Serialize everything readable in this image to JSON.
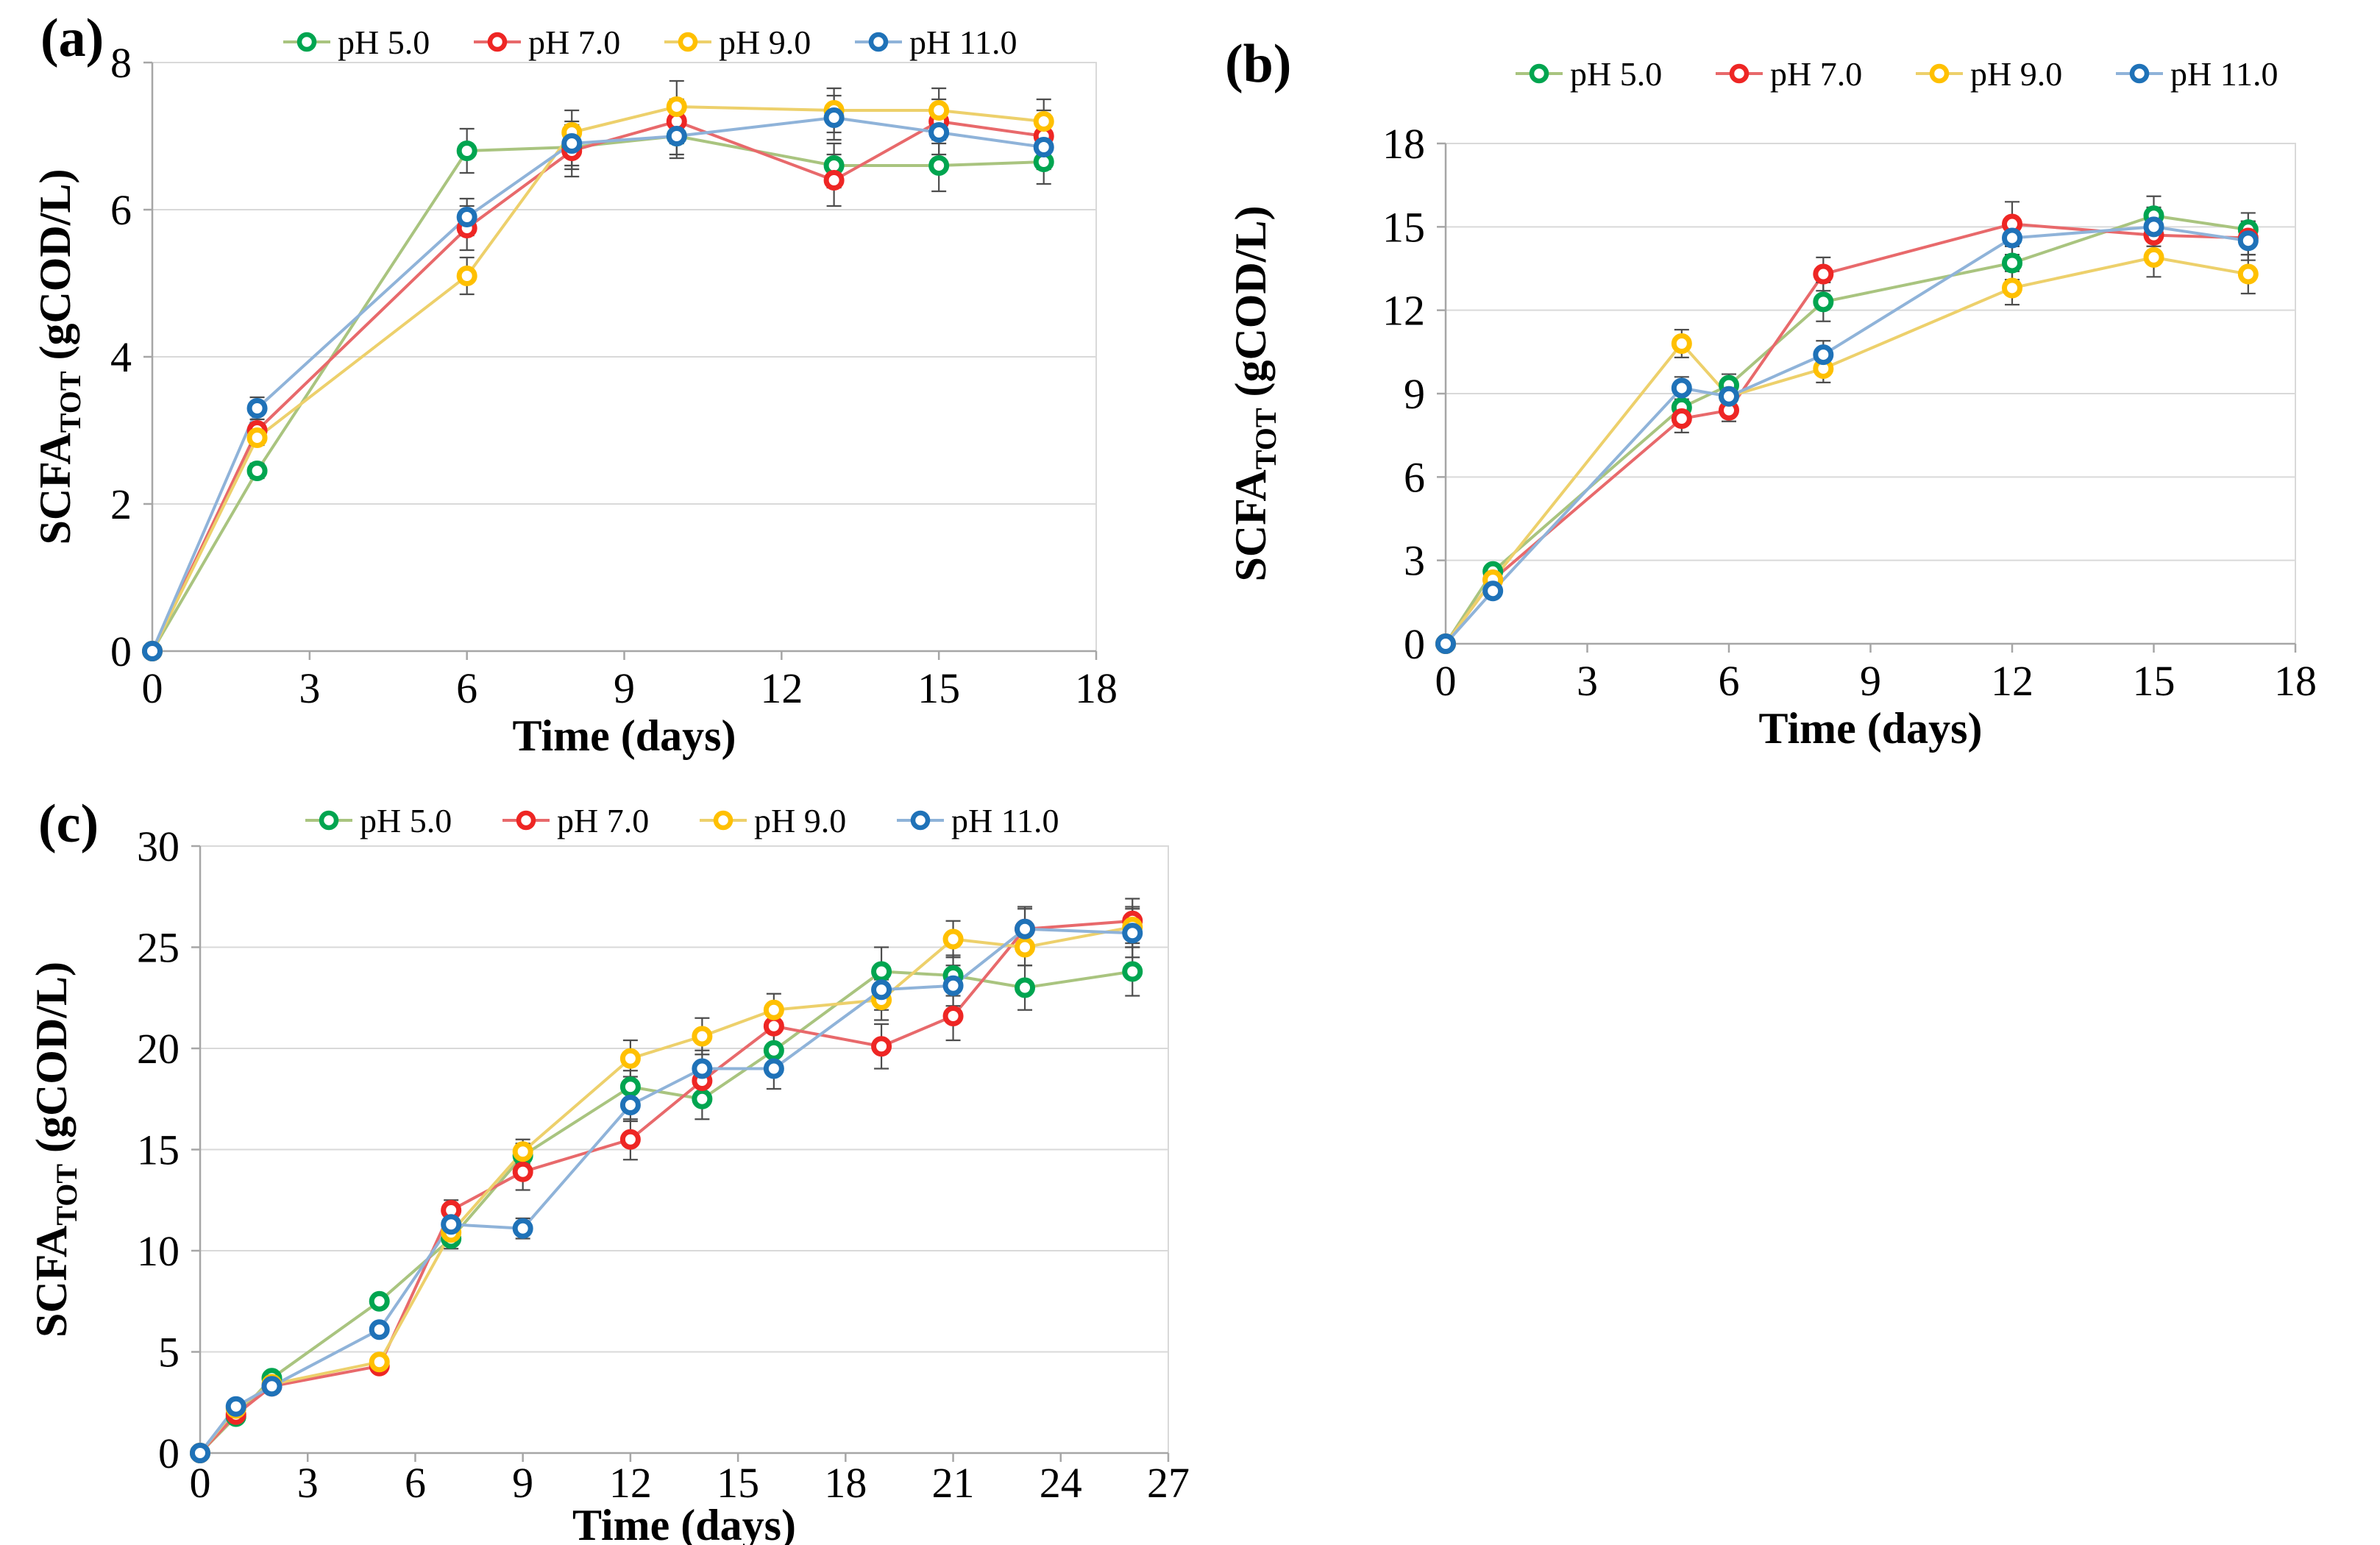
{
  "style": {
    "background_color": "#FFFFFF",
    "gridline_color": "#D9D9D9",
    "plot_border_color": "#D9D9D9",
    "axis_line_color": "#A6A6A6",
    "error_bar_color": "#4D4D4D",
    "text_color": "#000000"
  },
  "chart_data": [
    {
      "id": "a",
      "type": "line",
      "panel_label": "(a)",
      "axis": {
        "x": {
          "label": "Time (days)",
          "min": 0,
          "max": 18,
          "ticks": [
            0,
            3,
            6,
            9,
            12,
            15,
            18
          ]
        },
        "y": {
          "label_prefix": "SCFA",
          "label_sub": "TOT",
          "label_suffix": " (gCOD/L)",
          "label_plain": "SCFA_TOT (gCOD/L)",
          "min": 0,
          "max": 8,
          "ticks": [
            0,
            2,
            4,
            6,
            8
          ]
        }
      },
      "grid": true,
      "legend_position": "top",
      "x": [
        0,
        2,
        6,
        8,
        10,
        13,
        15,
        17
      ],
      "series": [
        {
          "name": "pH 5.0",
          "marker_color": "#00A550",
          "line_color": "#A9C47F",
          "values": [
            0,
            2.45,
            6.8,
            6.85,
            7.0,
            6.6,
            6.6,
            6.65
          ],
          "errors": [
            0,
            0.1,
            0.3,
            0.3,
            0.25,
            0.3,
            0.35,
            0.3
          ]
        },
        {
          "name": "pH 7.0",
          "marker_color": "#EE2624",
          "line_color": "#E8696B",
          "values": [
            0,
            3.0,
            5.75,
            6.8,
            7.2,
            6.4,
            7.2,
            7.0
          ],
          "errors": [
            0,
            0.1,
            0.3,
            0.35,
            0.3,
            0.35,
            0.3,
            0.35
          ]
        },
        {
          "name": "pH 9.0",
          "marker_color": "#FFC000",
          "line_color": "#EDD06B",
          "values": [
            0,
            2.9,
            5.1,
            7.05,
            7.4,
            7.35,
            7.35,
            7.2
          ],
          "errors": [
            0,
            0.1,
            0.25,
            0.3,
            0.35,
            0.3,
            0.3,
            0.3
          ]
        },
        {
          "name": "pH 11.0",
          "marker_color": "#1F72B8",
          "line_color": "#8FB3D9",
          "values": [
            0,
            3.3,
            5.9,
            6.9,
            7.0,
            7.25,
            7.05,
            6.85
          ],
          "errors": [
            0,
            0.15,
            0.25,
            0.3,
            0.3,
            0.3,
            0.3,
            0.3
          ]
        }
      ]
    },
    {
      "id": "b",
      "type": "line",
      "panel_label": "(b)",
      "axis": {
        "x": {
          "label": "Time (days)",
          "min": 0,
          "max": 18,
          "ticks": [
            0,
            3,
            6,
            9,
            12,
            15,
            18
          ]
        },
        "y": {
          "label_prefix": "SCFA",
          "label_sub": "TOT",
          "label_suffix": " (gCOD/L)",
          "label_plain": "SCFA_TOT (gCOD/L)",
          "min": 0,
          "max": 18,
          "ticks": [
            0,
            3,
            6,
            9,
            12,
            15,
            18
          ]
        }
      },
      "grid": true,
      "legend_position": "top",
      "x": [
        0,
        1,
        5,
        6,
        8,
        12,
        15,
        17
      ],
      "series": [
        {
          "name": "pH 5.0",
          "marker_color": "#00A550",
          "line_color": "#A9C47F",
          "values": [
            0,
            2.6,
            8.5,
            9.3,
            12.3,
            13.7,
            15.4,
            14.9
          ],
          "errors": [
            0,
            0.2,
            0.5,
            0.4,
            0.7,
            0.6,
            0.7,
            0.6
          ]
        },
        {
          "name": "pH 7.0",
          "marker_color": "#EE2624",
          "line_color": "#E8696B",
          "values": [
            0,
            2.3,
            8.1,
            8.4,
            13.3,
            15.1,
            14.7,
            14.6
          ],
          "errors": [
            0,
            0.2,
            0.5,
            0.4,
            0.6,
            0.8,
            0.6,
            0.6
          ]
        },
        {
          "name": "pH 9.0",
          "marker_color": "#FFC000",
          "line_color": "#EDD06B",
          "values": [
            0,
            2.3,
            10.8,
            8.9,
            9.9,
            12.8,
            13.9,
            13.3
          ],
          "errors": [
            0,
            0.2,
            0.5,
            0.4,
            0.5,
            0.6,
            0.7,
            0.7
          ]
        },
        {
          "name": "pH 11.0",
          "marker_color": "#1F72B8",
          "line_color": "#8FB3D9",
          "values": [
            0,
            1.9,
            9.2,
            8.9,
            10.4,
            14.6,
            15.0,
            14.5
          ],
          "errors": [
            0,
            0.2,
            0.4,
            0.4,
            0.5,
            0.6,
            0.7,
            0.7
          ]
        }
      ]
    },
    {
      "id": "c",
      "type": "line",
      "panel_label": "(c)",
      "axis": {
        "x": {
          "label": "Time (days)",
          "min": 0,
          "max": 27,
          "ticks": [
            0,
            3,
            6,
            9,
            12,
            15,
            18,
            21,
            24,
            27
          ]
        },
        "y": {
          "label_prefix": "SCFA",
          "label_sub": "TOT",
          "label_suffix": " (gCOD/L)",
          "label_plain": "SCFA_TOT (gCOD/L)",
          "min": 0,
          "max": 30,
          "ticks": [
            0,
            5,
            10,
            15,
            20,
            25,
            30
          ]
        }
      },
      "grid": true,
      "legend_position": "top",
      "x": [
        0,
        1,
        2,
        5,
        7,
        9,
        12,
        14,
        16,
        19,
        21,
        23,
        26
      ],
      "series": [
        {
          "name": "pH 5.0",
          "marker_color": "#00A550",
          "line_color": "#A9C47F",
          "values": [
            0,
            1.8,
            3.7,
            7.5,
            10.6,
            14.7,
            18.1,
            17.5,
            19.9,
            23.8,
            23.6,
            23.0,
            23.8
          ],
          "errors": [
            0,
            0.2,
            0.2,
            0.3,
            0.5,
            0.6,
            0.8,
            1.0,
            1.0,
            1.2,
            1.0,
            1.1,
            1.2
          ]
        },
        {
          "name": "pH 7.0",
          "marker_color": "#EE2624",
          "line_color": "#E8696B",
          "values": [
            0,
            1.9,
            3.3,
            4.3,
            12.0,
            13.9,
            15.5,
            18.4,
            21.1,
            20.1,
            21.6,
            25.9,
            26.3
          ],
          "errors": [
            0,
            0.2,
            0.2,
            0.3,
            0.5,
            0.9,
            1.0,
            0.8,
            0.9,
            1.1,
            1.2,
            1.0,
            1.1
          ]
        },
        {
          "name": "pH 9.0",
          "marker_color": "#FFC000",
          "line_color": "#EDD06B",
          "values": [
            0,
            2.2,
            3.4,
            4.5,
            10.9,
            14.9,
            19.5,
            20.6,
            21.9,
            22.4,
            25.4,
            25.0,
            26.0
          ],
          "errors": [
            0,
            0.2,
            0.2,
            0.3,
            0.5,
            0.6,
            0.9,
            0.9,
            0.8,
            1.0,
            0.9,
            0.9,
            1.0
          ]
        },
        {
          "name": "pH 11.0",
          "marker_color": "#1F72B8",
          "line_color": "#8FB3D9",
          "values": [
            0,
            2.3,
            3.3,
            6.1,
            11.3,
            11.1,
            17.2,
            19.0,
            19.0,
            22.9,
            23.1,
            25.9,
            25.7
          ],
          "errors": [
            0,
            0.2,
            0.2,
            0.3,
            0.5,
            0.5,
            0.8,
            0.9,
            1.0,
            1.0,
            1.0,
            1.1,
            1.2
          ]
        }
      ]
    }
  ]
}
